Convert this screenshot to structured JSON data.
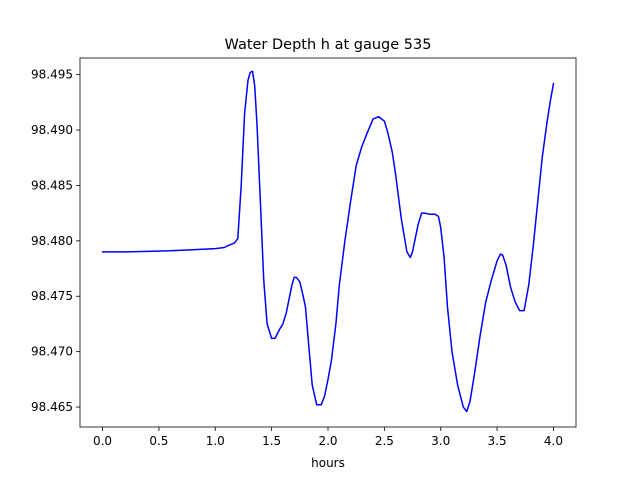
{
  "chart_data": {
    "type": "line",
    "title": "Water Depth h at gauge 535",
    "xlabel": "hours",
    "ylabel": "",
    "xlim": [
      -0.2,
      4.2
    ],
    "ylim": [
      98.4632,
      98.4965
    ],
    "xticks": [
      0.0,
      0.5,
      1.0,
      1.5,
      2.0,
      2.5,
      3.0,
      3.5,
      4.0
    ],
    "xtick_labels": [
      "0.0",
      "0.5",
      "1.0",
      "1.5",
      "2.0",
      "2.5",
      "3.0",
      "3.5",
      "4.0"
    ],
    "yticks": [
      98.465,
      98.47,
      98.475,
      98.48,
      98.485,
      98.49,
      98.495
    ],
    "ytick_labels": [
      "98.465",
      "98.470",
      "98.475",
      "98.480",
      "98.485",
      "98.490",
      "98.495"
    ],
    "grid": false,
    "series": [
      {
        "color": "#0000ff",
        "x": [
          0.0,
          0.2,
          0.4,
          0.6,
          0.8,
          1.0,
          1.08,
          1.12,
          1.17,
          1.2,
          1.23,
          1.26,
          1.29,
          1.31,
          1.33,
          1.35,
          1.37,
          1.4,
          1.43,
          1.46,
          1.5,
          1.53,
          1.57,
          1.6,
          1.63,
          1.65,
          1.68,
          1.7,
          1.72,
          1.75,
          1.78,
          1.8,
          1.83,
          1.86,
          1.9,
          1.94,
          1.97,
          2.0,
          2.03,
          2.07,
          2.1,
          2.15,
          2.2,
          2.25,
          2.3,
          2.35,
          2.4,
          2.45,
          2.5,
          2.53,
          2.57,
          2.6,
          2.65,
          2.7,
          2.73,
          2.75,
          2.78,
          2.8,
          2.83,
          2.86,
          2.9,
          2.95,
          2.98,
          3.0,
          3.03,
          3.06,
          3.1,
          3.15,
          3.2,
          3.23,
          3.26,
          3.3,
          3.35,
          3.4,
          3.45,
          3.5,
          3.53,
          3.55,
          3.58,
          3.62,
          3.66,
          3.7,
          3.74,
          3.78,
          3.82,
          3.86,
          3.9,
          3.94,
          3.97,
          4.0
        ],
        "y": [
          98.479,
          98.479,
          98.47905,
          98.4791,
          98.4792,
          98.4793,
          98.4794,
          98.4796,
          98.4798,
          98.4802,
          98.485,
          98.4915,
          98.4945,
          98.4952,
          98.4953,
          98.494,
          98.4905,
          98.4835,
          98.4765,
          98.4725,
          98.4712,
          98.4712,
          98.472,
          98.4725,
          98.4735,
          98.4745,
          98.476,
          98.4767,
          98.4767,
          98.4763,
          98.475,
          98.474,
          98.4705,
          98.467,
          98.4652,
          98.4652,
          98.466,
          98.4675,
          98.4692,
          98.4725,
          98.476,
          98.48,
          98.4835,
          98.4868,
          98.4885,
          98.4898,
          98.491,
          98.4912,
          98.4908,
          98.4898,
          98.488,
          98.486,
          98.482,
          98.479,
          98.4785,
          98.479,
          98.4805,
          98.4815,
          98.4825,
          98.4825,
          98.4824,
          98.4824,
          98.4822,
          98.4812,
          98.4785,
          98.474,
          98.47,
          98.467,
          98.465,
          98.4646,
          98.4655,
          98.468,
          98.4715,
          98.4745,
          98.4765,
          98.4782,
          98.4788,
          98.4787,
          98.4778,
          98.4758,
          98.4745,
          98.4737,
          98.4737,
          98.476,
          98.4795,
          98.4835,
          98.4875,
          98.4905,
          98.4925,
          98.4942
        ]
      }
    ]
  }
}
